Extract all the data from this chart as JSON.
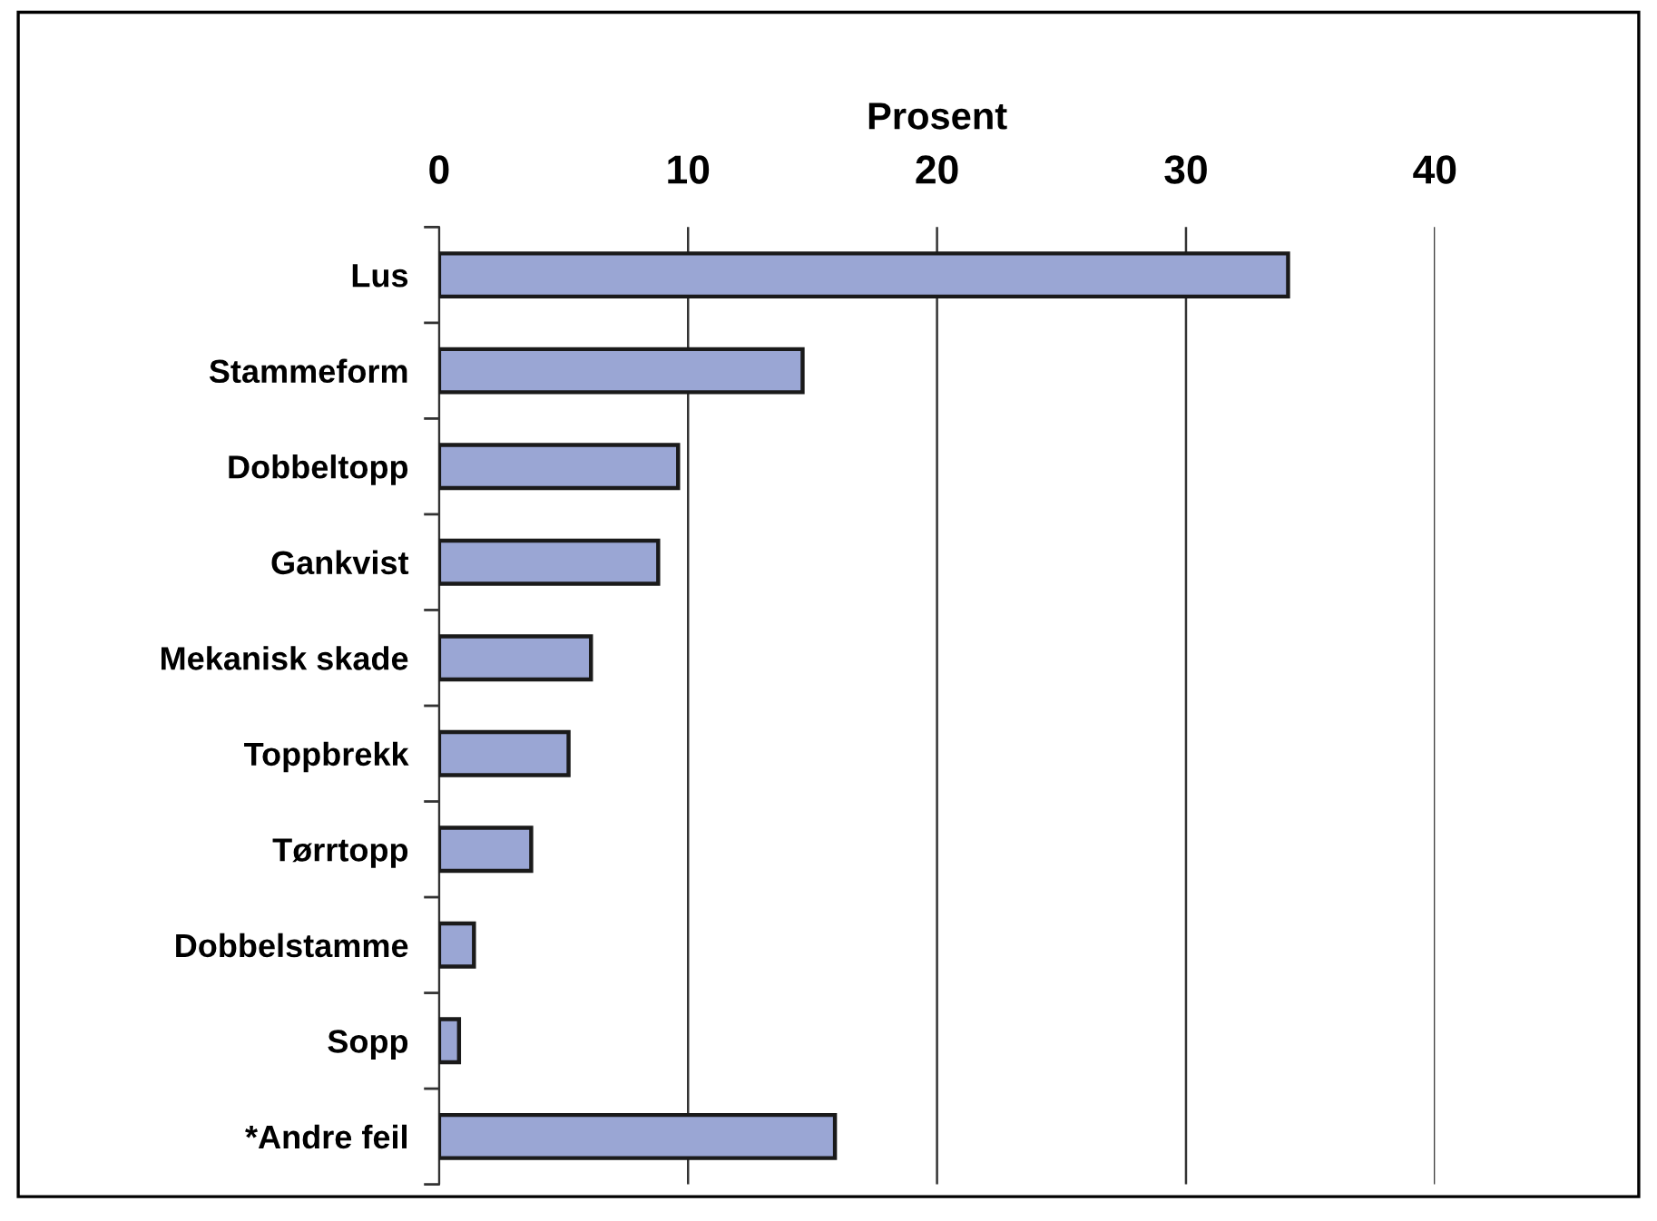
{
  "chart_data": {
    "type": "bar",
    "orientation": "horizontal",
    "xlabel": "Prosent",
    "categories": [
      "Lus",
      "Stammeform",
      "Dobbeltopp",
      "Gankvist",
      "Mekanisk skade",
      "Toppbrekk",
      "Tørrtopp",
      "Dobbelstamme",
      "Sopp",
      "*Andre feil"
    ],
    "values": [
      34.1,
      14.6,
      9.6,
      8.8,
      6.1,
      5.2,
      3.7,
      1.4,
      0.8,
      15.9
    ],
    "color": "#9aa6d4",
    "xlim": [
      0,
      40
    ],
    "xticks": [
      0,
      10,
      20,
      30,
      40
    ],
    "grid": "x",
    "legend": false
  }
}
